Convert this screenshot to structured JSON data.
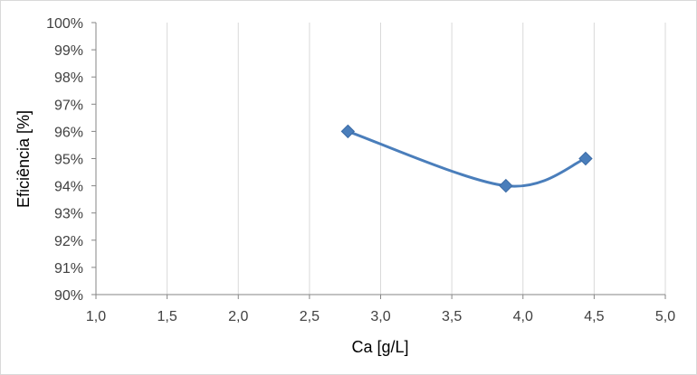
{
  "chart_data": {
    "type": "scatter",
    "title": "",
    "xlabel": "Ca [g/L]",
    "ylabel": "Eficiência [%]",
    "xlim": [
      1.0,
      5.0
    ],
    "ylim": [
      0.9,
      1.0
    ],
    "x_ticks": [
      "1,0",
      "1,5",
      "2,0",
      "2,5",
      "3,0",
      "3,5",
      "4,0",
      "4,5",
      "5,0"
    ],
    "y_ticks": [
      "90%",
      "91%",
      "92%",
      "93%",
      "94%",
      "95%",
      "96%",
      "97%",
      "98%",
      "99%",
      "100%"
    ],
    "grid": {
      "vertical": true,
      "horizontal": false
    },
    "line_style": "smooth",
    "marker": "diamond",
    "series": [
      {
        "x": [
          2.77,
          3.88,
          4.44
        ],
        "y": [
          0.96,
          0.94,
          0.95
        ],
        "color": "#4a7ebb"
      }
    ]
  }
}
